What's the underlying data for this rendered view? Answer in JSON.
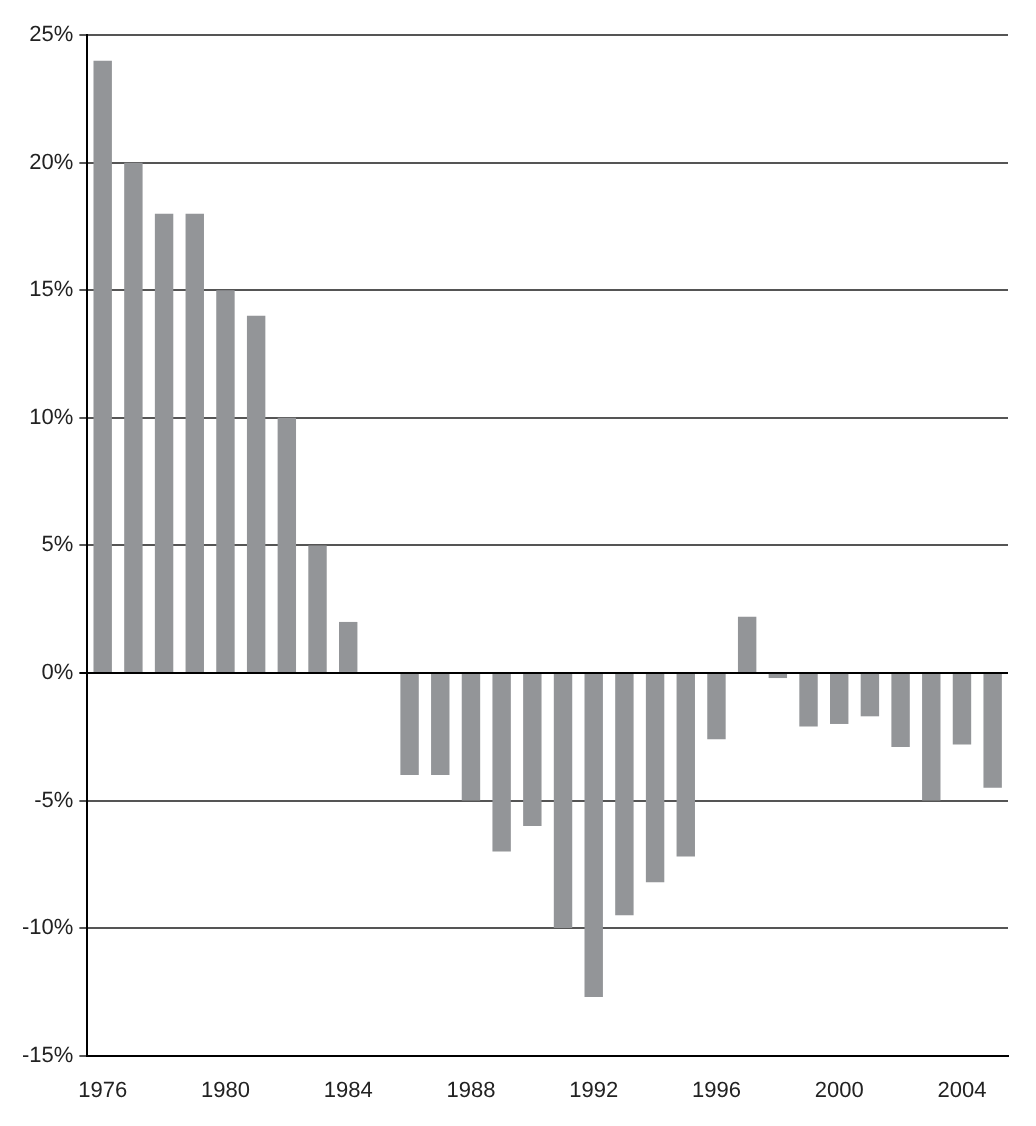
{
  "chart_data": {
    "type": "bar",
    "categories": [
      "1976",
      null,
      null,
      null,
      "1980",
      null,
      null,
      null,
      "1984",
      null,
      null,
      null,
      "1988",
      null,
      null,
      null,
      "1992",
      null,
      null,
      null,
      "1996",
      null,
      null,
      null,
      "2000",
      null,
      null,
      null,
      "2004",
      null
    ],
    "values": [
      24,
      20,
      18,
      18,
      15,
      14,
      10,
      5,
      2,
      0,
      -4,
      -4,
      -5,
      -7,
      -6,
      -10,
      -12.7,
      -9.5,
      -8.2,
      -7.2,
      -2.6,
      2.2,
      -0.2,
      -2.1,
      -2,
      -1.7,
      -2.9,
      -5,
      -2.8,
      -4.5
    ],
    "color": "#939598",
    "ylim": [
      -15,
      25
    ],
    "yticks": [
      {
        "value": -15,
        "label": "-15%"
      },
      {
        "value": -10,
        "label": "-10%"
      },
      {
        "value": -5,
        "label": "-5%"
      },
      {
        "value": 0,
        "label": "0%"
      },
      {
        "value": 5,
        "label": "5%"
      },
      {
        "value": 10,
        "label": "10%"
      },
      {
        "value": 15,
        "label": "15%"
      },
      {
        "value": 20,
        "label": "20%"
      },
      {
        "value": 25,
        "label": "25%"
      }
    ],
    "grid": "y",
    "legend": false
  }
}
